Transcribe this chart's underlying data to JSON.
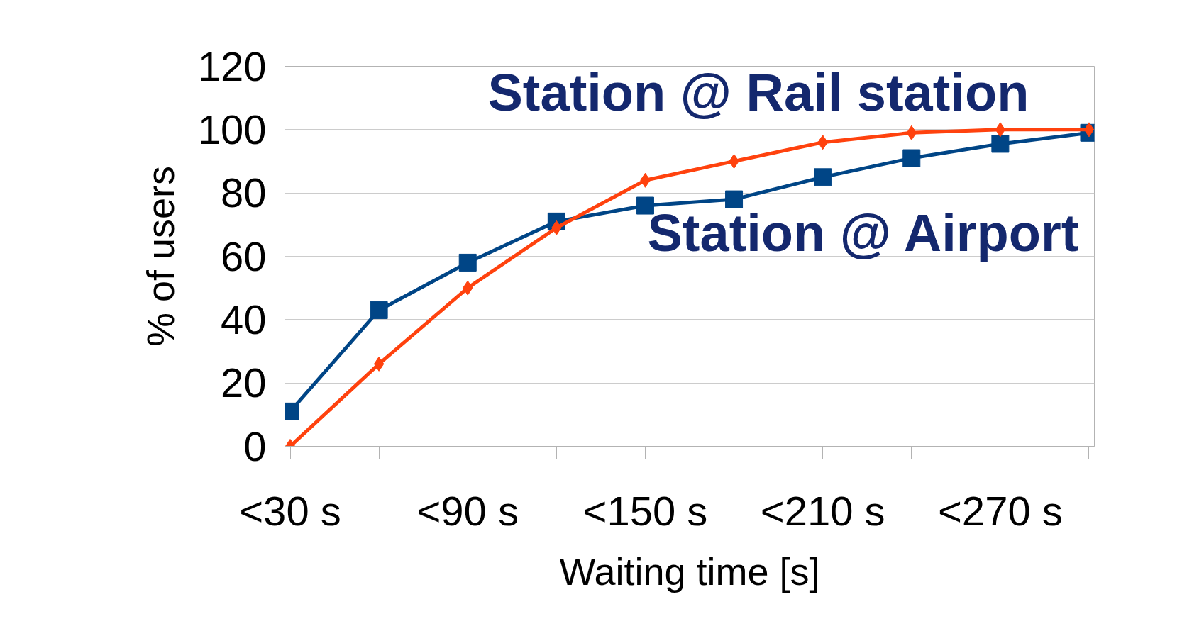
{
  "chart_data": {
    "type": "line",
    "xlabel": "Waiting time [s]",
    "ylabel": "% of users",
    "categories": [
      "<30 s",
      null,
      "<90 s",
      null,
      "<150 s",
      null,
      "<210 s",
      null,
      "<270 s",
      null
    ],
    "series": [
      {
        "name": "Station @ Rail station",
        "color": "#ff420e",
        "marker": "diamond",
        "values": [
          0,
          26,
          50,
          69,
          84,
          90,
          96,
          99,
          100,
          100
        ]
      },
      {
        "name": "Station @ Airport",
        "color": "#004586",
        "marker": "square",
        "values": [
          11,
          43,
          58,
          71,
          76,
          78,
          85,
          91,
          95.5,
          99
        ]
      }
    ],
    "ylim": [
      0,
      120
    ],
    "yticks": [
      0,
      20,
      40,
      60,
      80,
      100,
      120
    ],
    "grid": "y",
    "line_style": "solid"
  }
}
